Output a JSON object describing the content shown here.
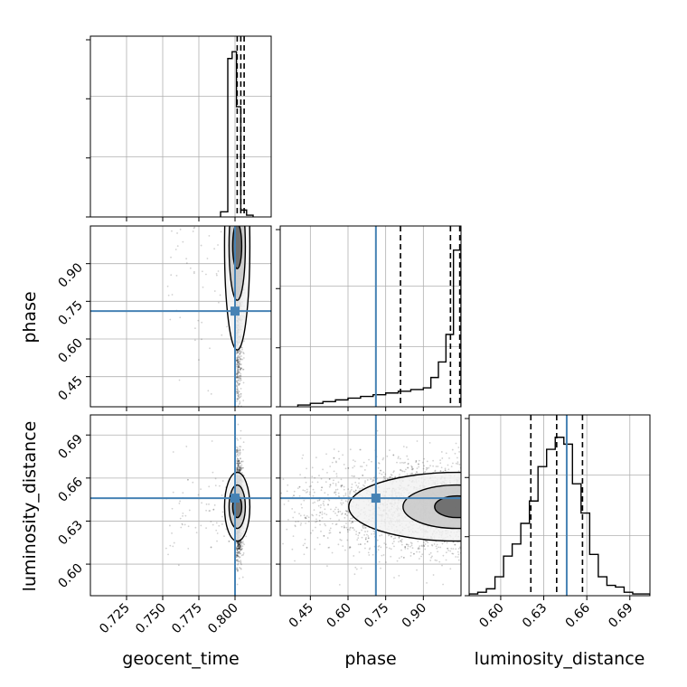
{
  "chart_data": {
    "type": "corner",
    "parameters": [
      "geocent_time",
      "phase",
      "luminosity_distance"
    ],
    "axis_labels": {
      "geocent_time": "geocent_time",
      "phase": "phase",
      "luminosity_distance": "luminosity_distance"
    },
    "ranges": {
      "geocent_time": [
        0.7,
        0.825
      ],
      "phase": [
        0.33,
        1.05
      ],
      "luminosity_distance": [
        0.578,
        0.704
      ]
    },
    "ticks": {
      "geocent_time": [
        0.725,
        0.75,
        0.775,
        0.8
      ],
      "phase": [
        0.45,
        0.6,
        0.75,
        0.9
      ],
      "luminosity_distance": [
        0.6,
        0.63,
        0.66,
        0.69
      ]
    },
    "tick_labels": {
      "geocent_time": [
        "0.725",
        "0.750",
        "0.775",
        "0.800"
      ],
      "phase": [
        "0.45",
        "0.60",
        "0.75",
        "0.90"
      ],
      "luminosity_distance": [
        "0.60",
        "0.63",
        "0.66",
        "0.69"
      ]
    },
    "truths": {
      "geocent_time": 0.8,
      "phase": 0.711,
      "luminosity_distance": 0.646
    },
    "quantiles": {
      "geocent_time": [
        0.8015,
        0.804,
        0.8063
      ],
      "phase": [
        0.809,
        1.008,
        1.045
      ],
      "luminosity_distance": [
        0.621,
        0.639,
        0.657
      ]
    },
    "histograms": {
      "geocent_time": {
        "edges": [
          0.79,
          0.795,
          0.798,
          0.801,
          0.804,
          0.808,
          0.8125
        ],
        "counts": [
          0.03,
          0.92,
          0.96,
          0.64,
          0.04,
          0.01
        ]
      },
      "phase": {
        "edges": [
          0.4,
          0.45,
          0.5,
          0.55,
          0.6,
          0.65,
          0.7,
          0.75,
          0.8,
          0.85,
          0.9,
          0.93,
          0.96,
          0.99,
          1.02,
          1.05
        ],
        "counts": [
          0.01,
          0.02,
          0.03,
          0.04,
          0.05,
          0.06,
          0.07,
          0.08,
          0.09,
          0.1,
          0.11,
          0.17,
          0.26,
          0.42,
          0.91
        ]
      },
      "luminosity_distance": {
        "edges": [
          0.578,
          0.584,
          0.59,
          0.596,
          0.602,
          0.608,
          0.614,
          0.62,
          0.626,
          0.632,
          0.638,
          0.644,
          0.65,
          0.656,
          0.662,
          0.668,
          0.674,
          0.68,
          0.686,
          0.692,
          0.698,
          0.704
        ],
        "counts": [
          0.01,
          0.02,
          0.04,
          0.11,
          0.23,
          0.3,
          0.42,
          0.55,
          0.75,
          0.85,
          0.92,
          0.88,
          0.65,
          0.48,
          0.24,
          0.11,
          0.06,
          0.05,
          0.02,
          0.01,
          0.01
        ]
      }
    },
    "grid": true
  }
}
